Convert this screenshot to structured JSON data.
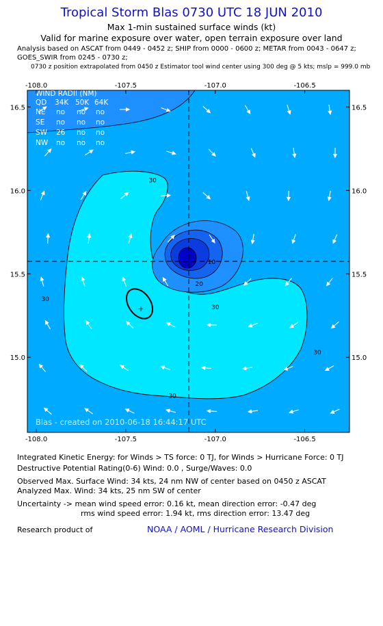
{
  "header": {
    "title": "Tropical Storm Blas 0730 UTC 18 JUN 2010",
    "subtitle": "Max 1-min sustained surface winds (kt)",
    "validity": "Valid for marine exposure over water, open terrain exposure over land",
    "analysis_line1": "Analysis based on  ASCAT from 0449 - 0452 z;  SHIP from 0000 - 0600 z;  METAR from 0043 - 0647 z;",
    "analysis_line2": "GOES_SWIR from 0245 - 0730 z;",
    "position_note": "0730 z position extrapolated from 0450 z Estimator tool wind center using 300 deg @ 5 kts; mslp = 999.0 mb"
  },
  "wind_radii": {
    "title": "WIND RADII (NM)",
    "header": [
      "QD",
      "34K",
      "50K",
      "64K"
    ],
    "rows": [
      [
        "NE",
        "no",
        "no",
        "no"
      ],
      [
        "SE",
        "no",
        "no",
        "no"
      ],
      [
        "SW",
        "26",
        "no",
        "no"
      ],
      [
        "NW",
        "no",
        "no",
        "no"
      ]
    ]
  },
  "watermark": "Blas - created on 2010-06-18 16:44:17 UTC",
  "chart_data": {
    "type": "heatmap",
    "xlim": [
      -108.05,
      -106.25
    ],
    "ylim": [
      14.55,
      16.6
    ],
    "x_ticks": [
      -108.0,
      -107.5,
      -107.0,
      -106.5
    ],
    "y_ticks": [
      15.0,
      15.5,
      16.0,
      16.5
    ],
    "x_tick_labels": [
      "-108.0",
      "-107.5",
      "-107.0",
      "-106.5"
    ],
    "y_tick_labels": [
      "15.0",
      "15.5",
      "16.0",
      "16.5"
    ],
    "center": {
      "lon": -107.05,
      "lat": 15.55
    },
    "secondary_max": {
      "lon": -107.38,
      "lat": 15.28
    },
    "contour_labels": [
      {
        "text": "30",
        "lon": -107.35,
        "lat": 16.06
      },
      {
        "text": "30",
        "lon": -107.95,
        "lat": 15.35
      },
      {
        "text": "30",
        "lon": -107.0,
        "lat": 15.3
      },
      {
        "text": "30",
        "lon": -106.43,
        "lat": 15.03
      },
      {
        "text": "30",
        "lon": -107.24,
        "lat": 14.77
      },
      {
        "text": "20",
        "lon": -107.09,
        "lat": 15.44
      },
      {
        "text": "10",
        "lon": -107.02,
        "lat": 15.57
      }
    ],
    "colors": {
      "plot_bg": "#00aaff",
      "light_region": "#00e8ff",
      "northwest_band": "#1e90ff",
      "core_outer": "#1e90ff",
      "core_mid": "#1464f0",
      "core_inner": "#0a3ce0",
      "core_center": "#0000c8",
      "vector": "#ffffff",
      "contour": "#000000"
    }
  },
  "footer": {
    "ike": "Integrated Kinetic Energy:  for Winds > TS force: 0 TJ,  for Winds > Hurricane Force: 0 TJ",
    "dpr": "Destructive Potential Rating(0-6)   Wind: 0.0 , Surge/Waves: 0.0",
    "obs_max": "Observed Max. Surface Wind: 34 kts, 24 nm NW of center based on 0450 z ASCAT",
    "analyzed_max": "Analyzed Max. Wind: 34 kts, 25 nm SW of center",
    "uncertainty1": "Uncertainty -> mean wind speed error: 0.16 kt,   mean direction error:  -0.47 deg",
    "uncertainty2": "rms wind speed error: 1.94 kt,   rms direction error: 13.47 deg",
    "research": "Research product of",
    "org": "NOAA / AOML / Hurricane Research Division"
  }
}
